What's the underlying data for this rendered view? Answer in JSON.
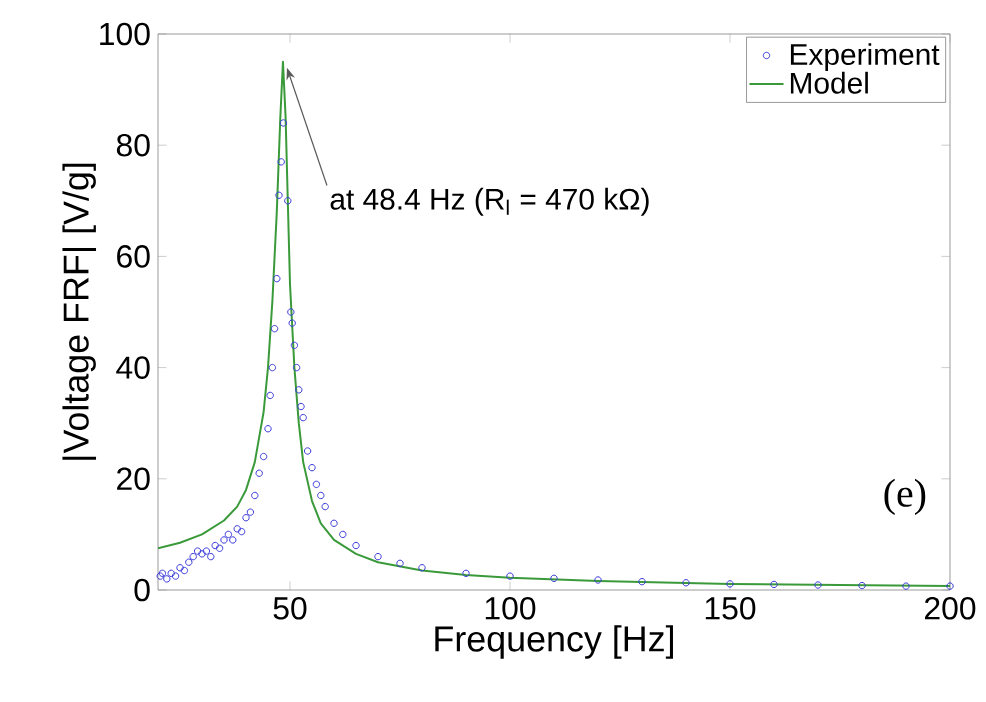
{
  "chart_data": {
    "type": "line",
    "xlabel": "Frequency [Hz]",
    "ylabel": "|Voltage FRF| [V/g]",
    "xlim": [
      20,
      200
    ],
    "ylim": [
      0,
      100
    ],
    "xticks": [
      50,
      100,
      150,
      200
    ],
    "yticks": [
      0,
      20,
      40,
      60,
      80,
      100
    ],
    "grid": false,
    "legend": "top right",
    "annotations": [
      {
        "text": "at 48.4 Hz (R$_{l}$ = 470 kΩ)",
        "x": 48.4,
        "y": 95
      },
      "(e)"
    ],
    "series": [
      {
        "name": "Experiment",
        "type": "scatter",
        "marker": "circle",
        "color": "#3a3ad8",
        "x": [
          20.5,
          21,
          22,
          23,
          24,
          25,
          26,
          27,
          28,
          29,
          30,
          31,
          32,
          33,
          34,
          35,
          36,
          37,
          38,
          39,
          40,
          41,
          42,
          43,
          44,
          45,
          45.5,
          46,
          46.5,
          47,
          47.5,
          48,
          48.5,
          49.5,
          50.2,
          50.5,
          51,
          51.5,
          52,
          52.5,
          53,
          54,
          55,
          56,
          57,
          58,
          60,
          62,
          65,
          70,
          75,
          80,
          90,
          100,
          110,
          120,
          130,
          140,
          150,
          160,
          170,
          180,
          190,
          200
        ],
        "values": [
          2.5,
          3,
          2,
          3,
          2.5,
          4,
          3.5,
          5,
          6,
          7,
          6.5,
          7,
          6,
          8,
          7.5,
          9,
          10,
          9,
          11,
          10.5,
          13,
          14,
          17,
          21,
          24,
          29,
          35,
          40,
          47,
          56,
          71,
          77,
          84,
          70,
          50,
          48,
          44,
          40,
          36,
          33,
          31,
          25,
          22,
          19,
          17,
          15,
          12,
          10,
          8,
          6,
          4.8,
          4,
          3,
          2.5,
          2.1,
          1.8,
          1.5,
          1.3,
          1.1,
          1,
          0.9,
          0.8,
          0.7,
          0.7
        ]
      },
      {
        "name": "Model",
        "marker": "none",
        "line_style": "solid",
        "color": "#3a9a3a",
        "x": [
          20,
          25,
          30,
          35,
          38,
          40,
          42,
          44,
          45,
          46,
          47,
          47.8,
          48.4,
          49,
          49.5,
          50,
          51,
          52,
          53,
          55,
          57,
          60,
          65,
          70,
          80,
          90,
          100,
          120,
          150,
          175,
          200
        ],
        "values": [
          7.5,
          8.5,
          10,
          12.5,
          15,
          18,
          23,
          32,
          40,
          52,
          68,
          85,
          95,
          85,
          70,
          55,
          40,
          30,
          23,
          16,
          12,
          9,
          6.5,
          5,
          3.5,
          2.7,
          2.2,
          1.6,
          1.1,
          0.9,
          0.7
        ]
      }
    ]
  }
}
